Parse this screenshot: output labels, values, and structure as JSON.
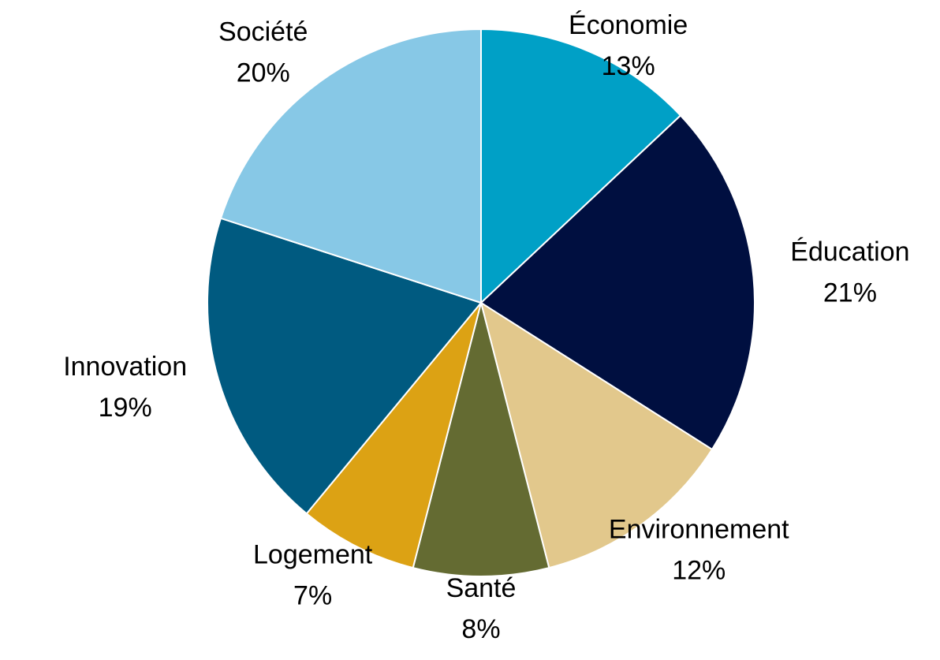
{
  "chart_data": {
    "type": "pie",
    "categories": [
      "Économie",
      "Éducation",
      "Environnement",
      "Santé",
      "Logement",
      "Innovation",
      "Société"
    ],
    "values": [
      13,
      21,
      12,
      8,
      7,
      19,
      20
    ],
    "value_labels": [
      "13%",
      "21%",
      "12%",
      "8%",
      "7%",
      "19%",
      "20%"
    ],
    "colors": [
      "#00a0c6",
      "#000f40",
      "#e2c88c",
      "#646b32",
      "#dca214",
      "#005a80",
      "#87c8e6"
    ]
  }
}
